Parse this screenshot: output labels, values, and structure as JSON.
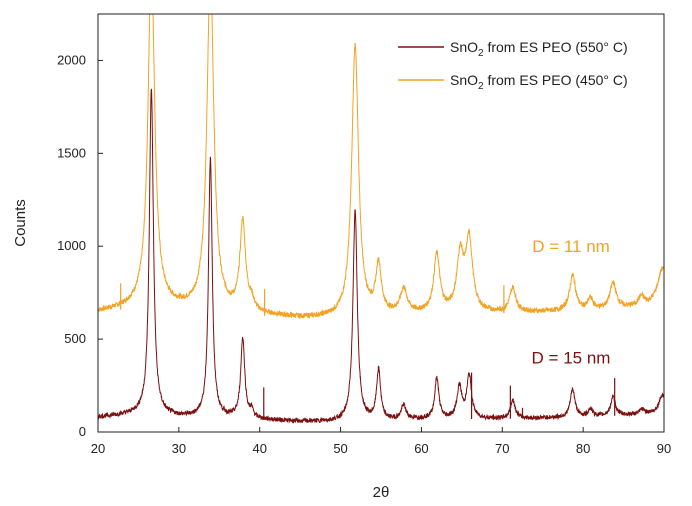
{
  "chart_data": {
    "type": "line",
    "xlabel": "2θ",
    "ylabel": "Counts",
    "xlim": [
      20,
      90
    ],
    "ylim": [
      0,
      2250
    ],
    "xticks": [
      20,
      30,
      40,
      50,
      60,
      70,
      80,
      90
    ],
    "yticks": [
      0,
      500,
      1000,
      1500,
      2000
    ],
    "grid": false,
    "legend_position": "top-right",
    "colors": {
      "s550": "#7a1010",
      "s450": "#f2a324"
    },
    "series": [
      {
        "id": "s550",
        "name": "SnO₂ from ES PEO (550° C)",
        "name_main": "SnO",
        "name_sub": "2",
        "name_rest": " from ES PEO (550° C)",
        "color": "#7a1010",
        "baseline": [
          [
            20,
            80
          ],
          [
            25,
            95
          ],
          [
            30,
            80
          ],
          [
            36,
            75
          ],
          [
            45,
            55
          ],
          [
            50,
            55
          ],
          [
            55,
            60
          ],
          [
            60,
            70
          ],
          [
            70,
            70
          ],
          [
            80,
            80
          ],
          [
            88,
            95
          ],
          [
            90,
            100
          ]
        ],
        "peaks": [
          [
            26.6,
            1760,
            0.3
          ],
          [
            33.9,
            1390,
            0.28
          ],
          [
            37.9,
            430,
            0.3
          ],
          [
            39.0,
            40,
            0.25
          ],
          [
            51.8,
            1130,
            0.32
          ],
          [
            54.7,
            270,
            0.3
          ],
          [
            57.8,
            75,
            0.35
          ],
          [
            61.9,
            220,
            0.3
          ],
          [
            64.7,
            170,
            0.35
          ],
          [
            65.9,
            230,
            0.35
          ],
          [
            71.3,
            100,
            0.35
          ],
          [
            78.7,
            150,
            0.35
          ],
          [
            80.9,
            40,
            0.35
          ],
          [
            83.7,
            100,
            0.35
          ],
          [
            87.3,
            25,
            0.4
          ],
          [
            89.8,
            100,
            0.5
          ]
        ],
        "spikes": [
          [
            40.5,
            240
          ],
          [
            66.2,
            320
          ],
          [
            71.0,
            250
          ],
          [
            72.5,
            130
          ],
          [
            83.9,
            290
          ]
        ],
        "noise": 12
      },
      {
        "id": "s450",
        "name": "SnO₂ from ES PEO (450° C)",
        "name_main": "SnO",
        "name_sub": "2",
        "name_rest": " from ES PEO (450° C)",
        "color": "#f2a324",
        "baseline": [
          [
            20,
            645
          ],
          [
            25,
            670
          ],
          [
            30,
            660
          ],
          [
            36,
            640
          ],
          [
            45,
            610
          ],
          [
            50,
            610
          ],
          [
            55,
            625
          ],
          [
            60,
            635
          ],
          [
            70,
            640
          ],
          [
            80,
            650
          ],
          [
            88,
            675
          ],
          [
            90,
            700
          ]
        ],
        "peaks": [
          [
            26.6,
            1850,
            0.5
          ],
          [
            33.9,
            1850,
            0.5
          ],
          [
            37.9,
            480,
            0.42
          ],
          [
            39.0,
            50,
            0.35
          ],
          [
            51.8,
            1460,
            0.5
          ],
          [
            54.7,
            260,
            0.4
          ],
          [
            57.8,
            130,
            0.5
          ],
          [
            61.9,
            310,
            0.45
          ],
          [
            64.8,
            300,
            0.5
          ],
          [
            65.9,
            380,
            0.5
          ],
          [
            71.3,
            130,
            0.45
          ],
          [
            78.7,
            190,
            0.45
          ],
          [
            80.9,
            60,
            0.4
          ],
          [
            83.7,
            140,
            0.45
          ],
          [
            87.2,
            50,
            0.45
          ],
          [
            89.8,
            180,
            0.7
          ]
        ],
        "spikes": [
          [
            22.8,
            800
          ],
          [
            40.6,
            770
          ],
          [
            70.2,
            790
          ]
        ],
        "noise": 14
      }
    ],
    "annotations": [
      {
        "series": "s450",
        "text": "D = 11 nm",
        "x": 78.5,
        "y": 1000
      },
      {
        "series": "s550",
        "text": "D =  15  nm",
        "x": 78.5,
        "y": 400
      }
    ]
  }
}
